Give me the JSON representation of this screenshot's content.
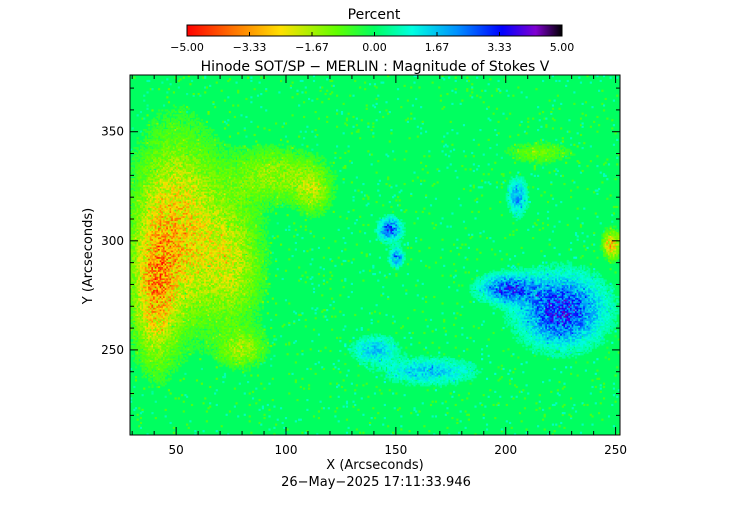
{
  "colorbar": {
    "title": "Percent",
    "range": [
      -5,
      5
    ],
    "tick_labels": [
      "−5.00",
      "−3.33",
      "−1.67",
      "0.00",
      "1.67",
      "3.33",
      "5.00"
    ]
  },
  "chart_data": {
    "type": "heatmap",
    "title": "Hinode SOT/SP − MERLIN : Magnitude of Stokes V",
    "xlabel": "X (Arcseconds)",
    "ylabel": "Y (Arcseconds)",
    "xlim": [
      29,
      252
    ],
    "ylim": [
      211,
      376
    ],
    "x_ticks": [
      50,
      100,
      150,
      200,
      250
    ],
    "y_ticks": [
      250,
      300,
      350
    ],
    "x_tick_labels": [
      "50",
      "100",
      "150",
      "200",
      "250"
    ],
    "y_tick_labels": [
      "250",
      "300",
      "350"
    ],
    "value_unit": "Percent",
    "value_range": [
      -5,
      5
    ],
    "background_value": 0.0,
    "colormap": "rainbow (red at −5 to black at 5)",
    "features": [
      {
        "kind": "negative",
        "x": 50,
        "y": 305,
        "sx": 18,
        "sy": 40,
        "amp": -2.6
      },
      {
        "kind": "negative",
        "x": 40,
        "y": 275,
        "sx": 9,
        "sy": 30,
        "amp": -2.2
      },
      {
        "kind": "negative",
        "x": 75,
        "y": 290,
        "sx": 14,
        "sy": 28,
        "amp": -1.7
      },
      {
        "kind": "negative",
        "x": 95,
        "y": 330,
        "sx": 20,
        "sy": 12,
        "amp": -1.4
      },
      {
        "kind": "negative",
        "x": 80,
        "y": 250,
        "sx": 10,
        "sy": 8,
        "amp": -1.4
      },
      {
        "kind": "negative",
        "x": 112,
        "y": 322,
        "sx": 8,
        "sy": 10,
        "amp": -1.3
      },
      {
        "kind": "negative",
        "x": 248,
        "y": 298,
        "sx": 4,
        "sy": 6,
        "amp": -2.8
      },
      {
        "kind": "negative",
        "x": 215,
        "y": 340,
        "sx": 15,
        "sy": 5,
        "amp": -1.0
      },
      {
        "kind": "positive",
        "x": 225,
        "y": 268,
        "sx": 18,
        "sy": 15,
        "amp": 3.2
      },
      {
        "kind": "positive",
        "x": 200,
        "y": 278,
        "sx": 12,
        "sy": 6,
        "amp": 2.6
      },
      {
        "kind": "positive",
        "x": 147,
        "y": 305,
        "sx": 5,
        "sy": 5,
        "amp": 2.8
      },
      {
        "kind": "positive",
        "x": 150,
        "y": 292,
        "sx": 3,
        "sy": 4,
        "amp": 2.4
      },
      {
        "kind": "positive",
        "x": 205,
        "y": 320,
        "sx": 4,
        "sy": 8,
        "amp": 2.0
      },
      {
        "kind": "positive",
        "x": 165,
        "y": 240,
        "sx": 20,
        "sy": 6,
        "amp": 1.5
      },
      {
        "kind": "positive",
        "x": 140,
        "y": 250,
        "sx": 10,
        "sy": 6,
        "amp": 1.5
      }
    ]
  },
  "footer": {
    "timestamp": "26−May−2025 17:11:33.946"
  }
}
